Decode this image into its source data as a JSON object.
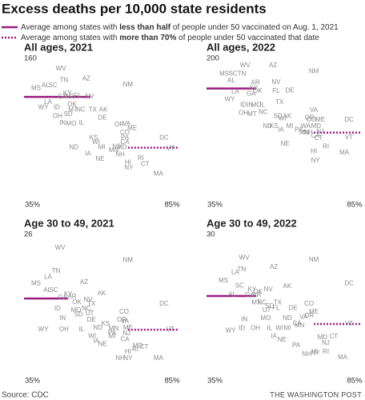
{
  "title": "Excess deaths per 10,000 state residents",
  "color": "#9c1c80",
  "legend": [
    {
      "style": "solid",
      "parts": [
        {
          "text": "Average among states with ",
          "bold": false
        },
        {
          "text": "less than half",
          "bold": true
        },
        {
          "text": " of people under 50 vaccinated on Aug. 1, 2021",
          "bold": false
        }
      ]
    },
    {
      "style": "dotted",
      "parts": [
        {
          "text": "Average among states with ",
          "bold": false
        },
        {
          "text": "more than 70%",
          "bold": true
        },
        {
          "text": " of people under 50 vaccinated that date",
          "bold": false
        }
      ]
    }
  ],
  "source": "Source: CDC",
  "credit": "THE WASHINGTON POST",
  "chart_data": [
    {
      "type": "scatter",
      "title": "All ages, 2021",
      "xlim": [
        32,
        87
      ],
      "xticks": [
        {
          "value": 35,
          "label": "35%"
        },
        {
          "value": 85,
          "label": "85%"
        }
      ],
      "ylim": [
        0,
        160
      ],
      "yticks": [
        160
      ],
      "labels": [
        "WV",
        "AZ",
        "NM",
        "MS",
        "AL",
        "SC",
        "TN",
        "KY",
        "AR",
        "GA",
        "FL",
        "LA",
        "NV",
        "WY",
        "ID",
        "OK",
        "MT",
        "NC",
        "TX",
        "AK",
        "SD",
        "IN",
        "OH",
        "MO",
        "IL",
        "DE",
        "OR",
        "VA",
        "CO",
        "ME",
        "PA",
        "KS",
        "WI",
        "ND",
        "IA",
        "MI",
        "MN",
        "NE",
        "NH",
        "CA",
        "NJ",
        "MD",
        "DC",
        "VT",
        "RI",
        "CT",
        "NY",
        "HI",
        "MA"
      ],
      "x": [
        45.2,
        54.3,
        69.2,
        36.3,
        39.7,
        42.3,
        46.3,
        47.5,
        48.3,
        45.8,
        51.2,
        40.6,
        55.5,
        38.9,
        43.7,
        49.2,
        49.5,
        52.3,
        56.6,
        60.4,
        47.8,
        45.8,
        44,
        48.9,
        52.6,
        60.1,
        66.1,
        68.7,
        68.1,
        70.7,
        68.1,
        56.9,
        57.8,
        49.8,
        54.9,
        59.8,
        64.1,
        59.2,
        66.4,
        68.1,
        65,
        67,
        82.1,
        84.4,
        73.8,
        75.3,
        69.5,
        69.2,
        80.1
      ],
      "y": [
        148,
        137,
        130,
        126,
        129,
        129,
        135,
        120,
        116,
        116,
        117,
        110,
        116,
        104,
        104,
        107,
        101,
        101,
        101,
        101,
        96,
        86,
        94,
        85,
        86,
        92,
        84,
        85,
        75,
        80,
        69,
        69,
        64,
        58,
        51,
        58,
        55,
        45,
        50,
        64,
        59,
        58,
        69,
        57,
        46,
        39,
        35,
        41,
        28
      ],
      "lines": [
        {
          "style": "solid",
          "y": 116,
          "x": [
            32,
            55.8
          ]
        },
        {
          "style": "dotted",
          "y": 58,
          "x": [
            69.2,
            87
          ]
        }
      ]
    },
    {
      "type": "scatter",
      "title": "All ages, 2022",
      "xlim": [
        32,
        87
      ],
      "xticks": [
        {
          "value": 35,
          "label": "35%"
        },
        {
          "value": 85,
          "label": "85%"
        }
      ],
      "ylim": [
        0,
        200
      ],
      "yticks": [
        200
      ],
      "labels": [
        "WV",
        "AZ",
        "MS",
        "SC",
        "TN",
        "NM",
        "AL",
        "AR",
        "NV",
        "KY",
        "LA",
        "GA",
        "OK",
        "FL",
        "DE",
        "WY",
        "TX",
        "ID",
        "IN",
        "MO",
        "OH",
        "MT",
        "NC",
        "IL",
        "SD",
        "AK",
        "KS",
        "ND",
        "MI",
        "WI",
        "VA",
        "OR",
        "CO",
        "ME",
        "PA",
        "MN",
        "NH",
        "DC",
        "MD",
        "WA",
        "NJ",
        "VT",
        "CT",
        "IA",
        "NE",
        "CA",
        "HI",
        "RI",
        "NY",
        "MA"
      ],
      "x": [
        45.8,
        55.8,
        38.3,
        41.5,
        44.6,
        70.4,
        40.9,
        49.5,
        56.9,
        48.9,
        42.3,
        48,
        50.3,
        56.9,
        61.8,
        40.3,
        58.1,
        45.2,
        47.5,
        49.8,
        45.2,
        48.3,
        52.3,
        52,
        57.5,
        60.9,
        56.1,
        53.8,
        61.8,
        59.2,
        70.4,
        68.9,
        69.5,
        72.7,
        65,
        67,
        68.4,
        83,
        71.2,
        67.5,
        72.7,
        83,
        72.1,
        58.6,
        60.1,
        71,
        70.4,
        74.7,
        71,
        81.3
      ],
      "y": [
        190,
        190,
        178,
        178,
        178,
        181,
        168,
        165,
        166,
        157,
        152,
        149,
        153,
        153,
        154,
        141,
        137,
        133,
        133,
        133,
        122,
        120,
        123,
        133,
        117,
        117,
        103,
        103,
        103,
        114,
        126,
        115,
        112,
        112,
        98,
        94,
        94,
        112,
        103,
        103,
        95,
        87,
        86,
        98,
        78,
        89,
        67,
        74,
        54,
        65
      ],
      "lines": [
        {
          "style": "solid",
          "y": 157,
          "x": [
            32,
            49.8
          ]
        },
        {
          "style": "dotted",
          "y": 94,
          "x": [
            70.4,
            87
          ]
        }
      ]
    },
    {
      "type": "scatter",
      "title": "Age 30 to 49, 2021",
      "xlim": [
        32,
        87
      ],
      "xticks": [
        {
          "value": 35,
          "label": "35%"
        },
        {
          "value": 85,
          "label": "85%"
        }
      ],
      "ylim": [
        0,
        26
      ],
      "yticks": [
        26
      ],
      "labels": [
        "WV",
        "NM",
        "TN",
        "LA",
        "MS",
        "AZ",
        "AL",
        "SC",
        "GA",
        "KY",
        "AR",
        "AK",
        "NV",
        "TX",
        "NC",
        "OK",
        "UT",
        "DC",
        "ID",
        "IN",
        "OH",
        "MO",
        "SD",
        "CO",
        "DE",
        "WY",
        "IL",
        "WI",
        "KS",
        "OR",
        "VA",
        "ME",
        "PA",
        "MN",
        "ND",
        "NJ",
        "VT",
        "MI",
        "IA",
        "NE",
        "MD",
        "CT",
        "RI",
        "HI",
        "NH",
        "NY",
        "MA",
        "CA"
      ],
      "x": [
        44.9,
        69.2,
        43.5,
        40.6,
        36.3,
        53.5,
        40.3,
        42.6,
        45.8,
        47.8,
        49.2,
        59.8,
        54.9,
        56.1,
        54.3,
        50.9,
        55.5,
        82.1,
        44,
        45.8,
        46.3,
        50.6,
        51.5,
        67.8,
        56.1,
        38.9,
        52.6,
        56.4,
        61.2,
        67,
        68.1,
        69.2,
        63.5,
        64.1,
        58.4,
        68.7,
        84.4,
        63.5,
        57.8,
        60.1,
        72.7,
        75,
        71.8,
        69.2,
        66.4,
        69.2,
        80.1,
        68.1
      ],
      "y": [
        23.5,
        21.2,
        19.2,
        18.1,
        16.9,
        17.1,
        15.6,
        15.6,
        14.3,
        14.9,
        14.4,
        15,
        13.8,
        13.1,
        12.2,
        13.4,
        11.3,
        13.1,
        12.2,
        10.4,
        8.3,
        11.9,
        11.1,
        11.6,
        10.1,
        8.3,
        8.3,
        7.1,
        9.4,
        10.1,
        9.8,
        8.6,
        7.7,
        8.5,
        8.6,
        7.6,
        8.3,
        7.1,
        6.2,
        5.6,
        5.3,
        5.1,
        4.6,
        4.2,
        3,
        3,
        3,
        6.5
      ],
      "lines": [
        {
          "style": "solid",
          "y": 14.1,
          "x": [
            32,
            47.8
          ]
        },
        {
          "style": "dotted",
          "y": 8.3,
          "x": [
            69.2,
            87
          ]
        }
      ]
    },
    {
      "type": "scatter",
      "title": "Age 30 to 49, 2022",
      "xlim": [
        32,
        87
      ],
      "xticks": [
        {
          "value": 35,
          "label": "35%"
        },
        {
          "value": 85,
          "label": "85%"
        }
      ],
      "ylim": [
        0,
        30
      ],
      "yticks": [
        30
      ],
      "labels": [
        "WV",
        "NM",
        "AZ",
        "TN",
        "LA",
        "MS",
        "DC",
        "SC",
        "AK",
        "AL",
        "KY",
        "AR",
        "GA",
        "NV",
        "OK",
        "MT",
        "NC",
        "TX",
        "SD",
        "FL",
        "UT",
        "CO",
        "DE",
        "IN",
        "WY",
        "ID",
        "OH",
        "IL",
        "MO",
        "WI",
        "MI",
        "ND",
        "ME",
        "VA",
        "OR",
        "MN",
        "VT",
        "IA",
        "NE",
        "MD",
        "CT",
        "NJ",
        "PA",
        "HI",
        "RI",
        "NH",
        "NY",
        "MA",
        "CA"
      ],
      "x": [
        45.5,
        70.4,
        56.1,
        44.6,
        42.3,
        38,
        83,
        43.8,
        60.9,
        41.2,
        48.3,
        50,
        47.5,
        54.1,
        50.3,
        49.8,
        51.8,
        57.5,
        54.6,
        56.9,
        53.5,
        68.7,
        63,
        45.5,
        40.6,
        44.6,
        49.5,
        54.6,
        53.2,
        58.1,
        60.9,
        60.9,
        70.4,
        66.7,
        68.7,
        65.3,
        83,
        56.1,
        59,
        73.5,
        77.5,
        74.7,
        64.1,
        70.7,
        74.7,
        67.8,
        71,
        80.7,
        64.4
      ],
      "y": [
        25,
        24.5,
        23,
        22.5,
        21.9,
        20.1,
        19.5,
        19,
        18.9,
        17.1,
        18.2,
        17,
        17,
        18.2,
        17.7,
        15.4,
        15.4,
        15.4,
        14.6,
        14.2,
        13.7,
        15.1,
        14.2,
        11.8,
        9.4,
        9.9,
        9.9,
        9.9,
        12,
        9.9,
        9.9,
        12,
        13.4,
        12.3,
        12.5,
        10.5,
        10.8,
        8.2,
        7.4,
        7.9,
        8.1,
        6.7,
        6.2,
        4.8,
        4.8,
        4.3,
        4.6,
        3.6,
        10.9
      ],
      "lines": [
        {
          "style": "solid",
          "y": 16.8,
          "x": [
            32,
            49.8
          ]
        },
        {
          "style": "dotted",
          "y": 10.8,
          "x": [
            70.4,
            87
          ]
        }
      ]
    }
  ]
}
